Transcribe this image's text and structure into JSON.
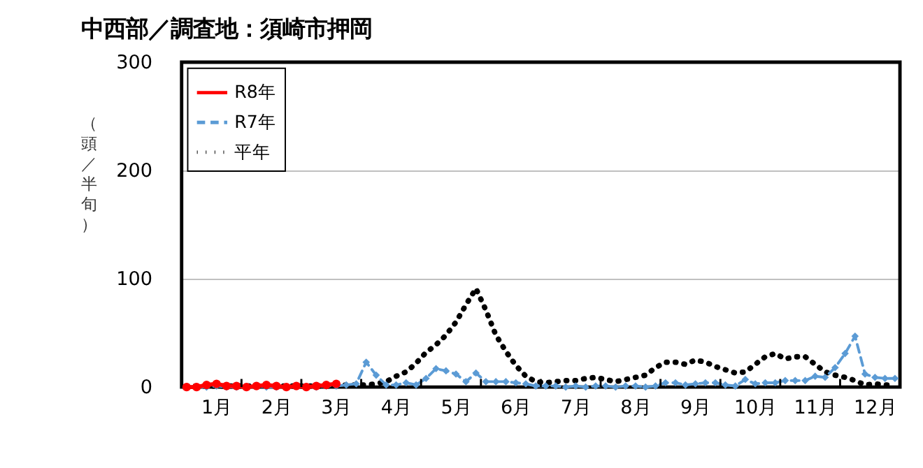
{
  "chart_data": {
    "type": "line",
    "title": "中西部／調査地：須崎市押岡",
    "ylabel": "（頭／半旬）",
    "categories": [
      null,
      null,
      null,
      "1月",
      null,
      null,
      null,
      null,
      null,
      "2月",
      null,
      null,
      null,
      null,
      null,
      "3月",
      null,
      null,
      null,
      null,
      null,
      "4月",
      null,
      null,
      null,
      null,
      null,
      "5月",
      null,
      null,
      null,
      null,
      null,
      "6月",
      null,
      null,
      null,
      null,
      null,
      "7月",
      null,
      null,
      null,
      null,
      null,
      "8月",
      null,
      null,
      null,
      null,
      null,
      "9月",
      null,
      null,
      null,
      null,
      null,
      "10月",
      null,
      null,
      null,
      null,
      null,
      "11月",
      null,
      null,
      null,
      null,
      null,
      "12月",
      null,
      null
    ],
    "ylim": [
      0,
      300
    ],
    "yticks": [
      0,
      100,
      200,
      300
    ],
    "grid": "y",
    "legend": "top left",
    "series": [
      {
        "name": "R8年",
        "color": "#ff0000",
        "line_style": "solid",
        "marker": "circle",
        "values": [
          0,
          0,
          2,
          3,
          1,
          1,
          0,
          1,
          2,
          1,
          0,
          1,
          0,
          1,
          2,
          3,
          null,
          null,
          null,
          null,
          null,
          null,
          null,
          null,
          null,
          null,
          null,
          null,
          null,
          null,
          null,
          null,
          null,
          null,
          null,
          null,
          null,
          null,
          null,
          null,
          null,
          null,
          null,
          null,
          null,
          null,
          null,
          null,
          null,
          null,
          null,
          null,
          null,
          null,
          null,
          null,
          null,
          null,
          null,
          null,
          null,
          null,
          null,
          null,
          null,
          null,
          null,
          null,
          null,
          null,
          null,
          null
        ]
      },
      {
        "name": "R7年",
        "color": "#5b9bd5",
        "line_style": "dashed",
        "marker": "diamond",
        "values": [
          0,
          0,
          0,
          1,
          0,
          0,
          0,
          1,
          0,
          0,
          0,
          1,
          0,
          0,
          1,
          1,
          2,
          3,
          23,
          11,
          2,
          2,
          4,
          2,
          8,
          17,
          15,
          12,
          5,
          13,
          5,
          5,
          5,
          4,
          3,
          1,
          1,
          1,
          0,
          1,
          0,
          1,
          1,
          0,
          1,
          1,
          0,
          1,
          4,
          4,
          2,
          3,
          4,
          4,
          2,
          1,
          7,
          3,
          4,
          4,
          6,
          6,
          6,
          10,
          9,
          18,
          31,
          47,
          12,
          9,
          8,
          8
        ]
      },
      {
        "name": "平年",
        "color": "#000000",
        "line_style": "dotted",
        "marker": "none",
        "values": [
          1,
          1,
          1,
          1,
          1,
          1,
          1,
          1,
          1,
          1,
          1,
          1,
          1,
          1,
          1,
          1,
          2,
          2,
          2,
          3,
          5,
          10,
          14,
          22,
          32,
          39,
          48,
          60,
          76,
          91,
          71,
          48,
          33,
          20,
          10,
          5,
          4,
          5,
          6,
          6,
          8,
          9,
          7,
          5,
          7,
          9,
          11,
          18,
          23,
          23,
          21,
          25,
          23,
          19,
          16,
          13,
          14,
          21,
          28,
          31,
          26,
          28,
          28,
          21,
          14,
          11,
          9,
          6,
          2,
          3,
          2,
          2
        ]
      }
    ]
  }
}
